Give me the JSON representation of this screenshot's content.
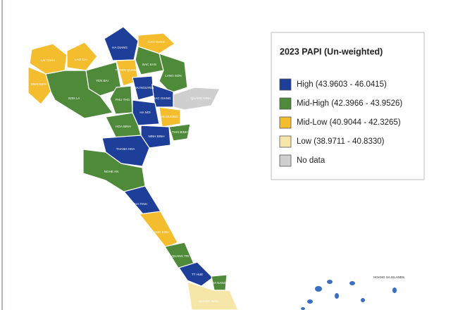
{
  "legend": {
    "title": "2023 PAPI (Un-weighted)",
    "items": [
      {
        "label": "High (43.9603 - 46.0415)",
        "color": "#1e3f99"
      },
      {
        "label": "Mid-High (42.3966 - 43.9526)",
        "color": "#4f8a3a"
      },
      {
        "label": "Mid-Low (40.9044 - 42.3265)",
        "color": "#f3bd2e"
      },
      {
        "label": "Low (38.9711 - 40.8330)",
        "color": "#f6e7a8"
      },
      {
        "label": "No data",
        "color": "#cfcfcf"
      }
    ]
  },
  "map": {
    "labels": [
      "HA GIANG",
      "CAO BANG",
      "LAO CAI",
      "LAI CHAU",
      "TUYEN QUANG",
      "BAC KAN",
      "LANG SON",
      "YEN BAI",
      "DIEN BIEN",
      "SON LA",
      "THAI NGUYEN",
      "PHU THO",
      "BAC GIANG",
      "QUANG NINH",
      "HA NOI",
      "HOA BINH",
      "HAI DUONG",
      "THAI BINH",
      "NINH BINH",
      "THANH HOA",
      "NGHE AN",
      "HA TINH",
      "QUANG BINH",
      "QUANG TRI",
      "TT HUE",
      "DA NANG",
      "QUANG NAM"
    ],
    "islands_label": "HOANG SA ISLANDS"
  }
}
